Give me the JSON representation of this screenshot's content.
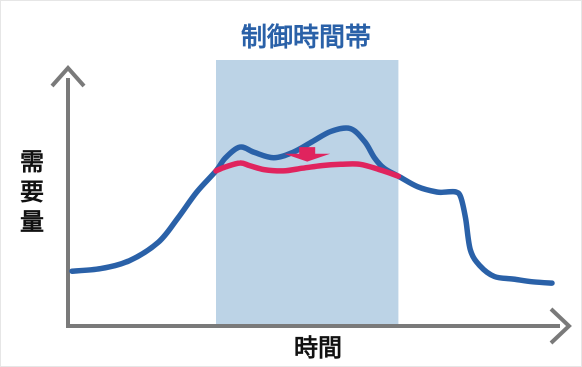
{
  "chart_data": {
    "type": "line",
    "title": "制御時間帯",
    "xlabel": "時間",
    "ylabel": "需要量",
    "grid": false,
    "legend": "none",
    "x_range": [
      0,
      100
    ],
    "y_range": [
      0,
      100
    ],
    "shaded_region": {
      "label": "制御時間帯",
      "x_start": 30,
      "x_end": 68,
      "color": "#bcd3e6"
    },
    "series": [
      {
        "key": "uncontrolled",
        "color": "#2a61a8",
        "x": [
          0,
          6,
          12,
          18,
          22,
          26,
          30,
          32,
          35,
          38,
          42,
          46,
          50,
          54,
          58,
          61,
          63,
          65,
          68,
          72,
          76,
          78,
          80,
          81,
          82,
          83,
          85,
          88,
          92,
          96,
          100
        ],
        "y": [
          20,
          21,
          24,
          31,
          40,
          50,
          58,
          63,
          67,
          65,
          63,
          65,
          69,
          73,
          74,
          69,
          63,
          59,
          56,
          52,
          50,
          50,
          50,
          48,
          40,
          28,
          22,
          18,
          17,
          16,
          15.5
        ]
      },
      {
        "key": "controlled",
        "color": "#e0245e",
        "x": [
          30,
          32,
          35,
          37,
          40,
          44,
          48,
          52,
          56,
          60,
          64,
          68
        ],
        "y": [
          58,
          59.5,
          61,
          60,
          58.5,
          58,
          59,
          60,
          60.5,
          60.5,
          58.5,
          56
        ]
      }
    ],
    "arrow": {
      "x": 49,
      "y_from": 67,
      "y_to": 61.5,
      "color": "#e0245e"
    }
  }
}
